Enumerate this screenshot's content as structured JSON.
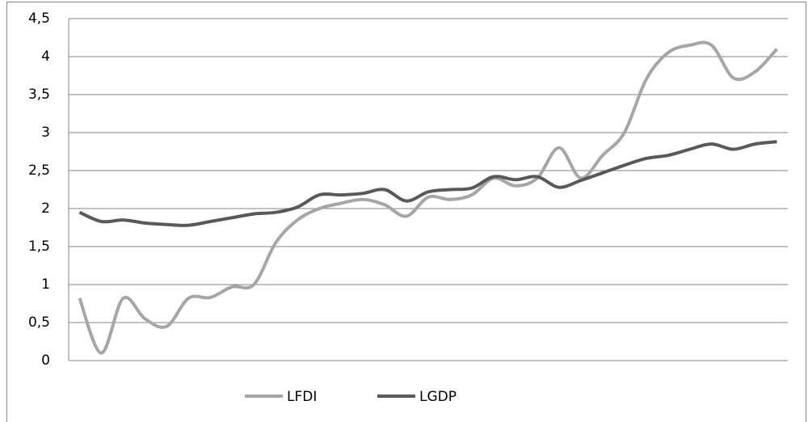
{
  "chart_data": {
    "type": "line",
    "categories": [
      null,
      null,
      null,
      null,
      null,
      null,
      null,
      null,
      null,
      null,
      null,
      null,
      null,
      null,
      null,
      null,
      null,
      null,
      null,
      null,
      null,
      null,
      null,
      null,
      null,
      null,
      null,
      null,
      null,
      null,
      null,
      null,
      null
    ],
    "series": [
      {
        "name": "LFDI",
        "color": "#a6a6a6",
        "values": [
          0.82,
          0.1,
          0.82,
          0.55,
          0.45,
          0.82,
          0.83,
          0.97,
          1.0,
          1.55,
          1.85,
          2.0,
          2.07,
          2.12,
          2.05,
          1.9,
          2.15,
          2.12,
          2.18,
          2.4,
          2.3,
          2.4,
          2.8,
          2.4,
          2.7,
          3.0,
          3.7,
          4.05,
          4.15,
          4.15,
          3.72,
          3.8,
          4.1
        ]
      },
      {
        "name": "LGDP",
        "color": "#595959",
        "values": [
          1.95,
          1.83,
          1.85,
          1.81,
          1.79,
          1.78,
          1.83,
          1.88,
          1.93,
          1.95,
          2.02,
          2.18,
          2.18,
          2.2,
          2.25,
          2.1,
          2.22,
          2.25,
          2.27,
          2.42,
          2.38,
          2.42,
          2.28,
          2.37,
          2.47,
          2.57,
          2.66,
          2.7,
          2.78,
          2.85,
          2.78,
          2.85,
          2.88
        ]
      }
    ],
    "ylim": [
      0,
      4.5
    ],
    "yticks": [
      0,
      {
        "value": 0.5,
        "label": "0,5"
      },
      1,
      {
        "value": 1.5,
        "label": "1,5"
      },
      2,
      {
        "value": 2.5,
        "label": "2,5"
      },
      3,
      {
        "value": 3.5,
        "label": "3,5"
      },
      4,
      {
        "value": 4.5,
        "label": "4,5"
      }
    ],
    "grid": true,
    "legend": "bottom"
  }
}
